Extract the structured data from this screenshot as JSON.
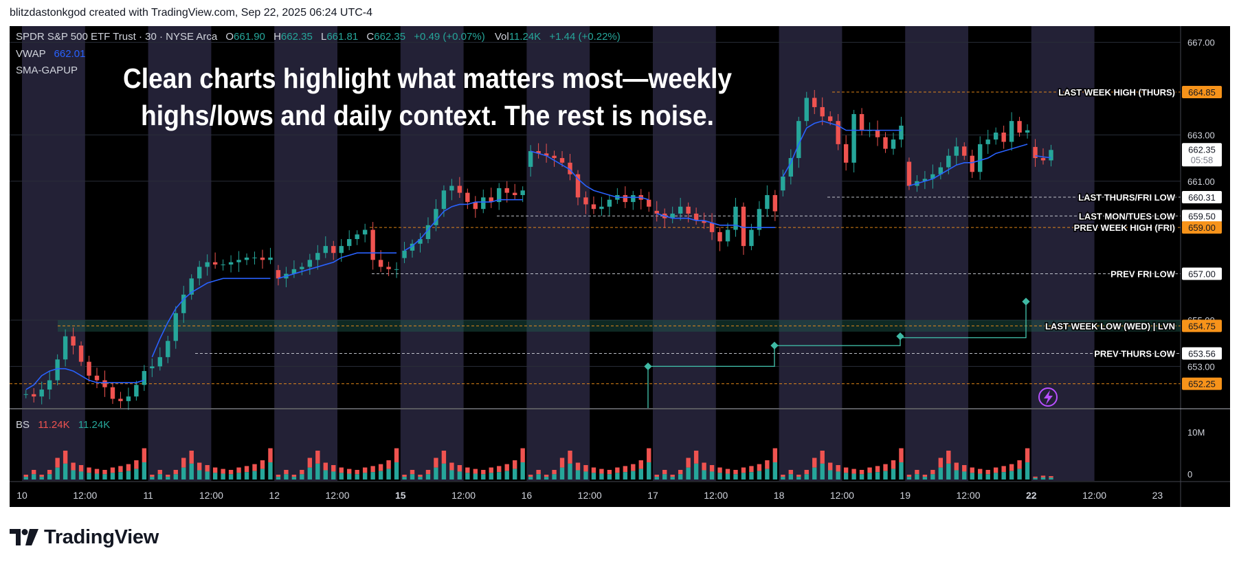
{
  "caption": "blitzdastonkgod created with TradingView.com, Sep 22, 2025 06:24 UTC-4",
  "brand": {
    "name": "TradingView",
    "logo_icon": "tradingview-logo-icon"
  },
  "legend": {
    "symbol": "SPDR S&P 500 ETF Trust · 30 · NYSE Arca",
    "ohlc": [
      {
        "k": "O",
        "v": "661.90"
      },
      {
        "k": "H",
        "v": "662.35"
      },
      {
        "k": "L",
        "v": "661.81"
      },
      {
        "k": "C",
        "v": "662.35"
      }
    ],
    "change": "+0.49 (+0.07%)",
    "vol_key": "Vol",
    "vol_value": "11.24K",
    "vol_change": "+1.44 (+0.22%)",
    "vwap_label": "VWAP",
    "vwap_value": "662.01",
    "indicator": "SMA-GAPUP"
  },
  "annotation": {
    "line1": "Clean charts highlight what matters most—weekly",
    "line2": "highs/lows and daily context. The rest is noise."
  },
  "volume_legend": {
    "label": "BS",
    "v1": "11.24K",
    "v2": "11.24K"
  },
  "colors": {
    "up": "#26a69a",
    "down": "#ef5350",
    "vwap": "#2962ff",
    "orange": "#f7931a",
    "teal_step": "#3fb9a4",
    "session_band": "#232136",
    "legend_text": "#d1d4dc",
    "flash_icon": "#b84fff"
  },
  "chart_data": {
    "type": "candlestick",
    "symbol": "SPY",
    "interval": "30",
    "x_tick_labels": [
      "10",
      "12:00",
      "11",
      "12:00",
      "12",
      "12:00",
      "15",
      "12:00",
      "16",
      "12:00",
      "17",
      "12:00",
      "18",
      "12:00",
      "19",
      "12:00",
      "22",
      "12:00",
      "23"
    ],
    "y_ticks": [
      "667.00",
      "663.00",
      "661.00",
      "655.00",
      "653.00"
    ],
    "ylim": [
      651.2,
      667.7
    ],
    "last_price": "662.35",
    "countdown": "05:58",
    "levels": [
      {
        "label": "LAST WEEK HIGH (THURS)",
        "price": "664.85",
        "style": "orange"
      },
      {
        "label": "LAST THURS/FRI LOW",
        "price": "660.31",
        "style": "white"
      },
      {
        "label": "LAST MON/TUES LOW",
        "price": "659.50",
        "style": "white"
      },
      {
        "label": "PREV WEEK HIGH (FRI)",
        "price": "659.00",
        "style": "orange"
      },
      {
        "label": "PREV FRI LOW",
        "price": "657.00",
        "style": "white"
      },
      {
        "label": "LAST WEEK LOW (WED) | LVN",
        "price": "654.75",
        "style": "orange"
      },
      {
        "label": "PREV THURS LOW",
        "price": "653.56",
        "style": "white"
      },
      {
        "label": "",
        "price": "652.25",
        "style": "orange"
      }
    ],
    "closes_by_day": [
      {
        "day": "Sep 10",
        "close": [
          651.8,
          651.7,
          652.0,
          652.4,
          653.3,
          654.3,
          653.9,
          653.2,
          652.6,
          652.4,
          652.1,
          651.6,
          651.5,
          651.7,
          652.2,
          652.8
        ]
      },
      {
        "day": "Sep 11",
        "close": [
          653.0,
          653.4,
          654.1,
          655.3,
          656.1,
          656.8,
          657.3,
          657.5,
          657.4,
          657.4,
          657.5,
          657.6,
          657.7,
          657.7,
          657.6,
          657.7
        ]
      },
      {
        "day": "Sep 12",
        "close": [
          656.8,
          657.0,
          657.2,
          657.3,
          657.6,
          657.9,
          658.2,
          657.9,
          658.2,
          658.5,
          658.7,
          658.9,
          657.6,
          657.3,
          657.2,
          657.2
        ]
      },
      {
        "day": "Sep 15",
        "close": [
          658.0,
          658.3,
          658.5,
          659.1,
          659.8,
          660.6,
          660.8,
          660.5,
          660.1,
          659.8,
          660.3,
          660.1,
          660.7,
          660.5,
          660.4,
          660.6
        ]
      },
      {
        "day": "Sep 16",
        "close": [
          662.3,
          662.2,
          662.1,
          662.0,
          661.8,
          661.3,
          660.3,
          660.0,
          659.8,
          659.9,
          660.2,
          660.4,
          660.1,
          660.4,
          660.2,
          659.9
        ]
      },
      {
        "day": "Sep 17",
        "close": [
          659.6,
          659.4,
          659.6,
          659.9,
          659.6,
          659.3,
          659.2,
          658.8,
          658.4,
          658.9,
          659.9,
          658.2,
          658.9,
          659.8,
          660.4,
          659.7
        ]
      },
      {
        "day": "Sep 18",
        "close": [
          661.2,
          662.0,
          663.6,
          664.6,
          664.2,
          663.8,
          663.6,
          662.6,
          661.8,
          663.9,
          663.2,
          663.2,
          662.9,
          662.4,
          662.8,
          663.4
        ]
      },
      {
        "day": "Sep 19",
        "close": [
          660.8,
          661.0,
          661.1,
          661.3,
          661.6,
          662.1,
          662.5,
          662.1,
          661.4,
          662.6,
          662.8,
          663.1,
          662.7,
          663.6,
          663.1,
          663.2
        ]
      },
      {
        "day": "Sep 22",
        "close": [
          662.0,
          661.9,
          662.35
        ]
      }
    ],
    "vwap_by_day": [
      {
        "day": "Sep 10",
        "vwap": [
          652.0,
          652.2,
          652.6,
          652.8,
          652.9,
          652.9,
          652.8,
          652.6,
          652.4,
          652.3,
          652.3,
          652.3,
          652.3,
          652.3,
          652.3,
          652.4
        ]
      },
      {
        "day": "Sep 11",
        "vwap": [
          653.4,
          654.2,
          654.9,
          655.5,
          655.9,
          656.2,
          656.4,
          656.6,
          656.7,
          656.8,
          656.8,
          656.8,
          656.8,
          656.8,
          656.8,
          656.8
        ]
      },
      {
        "day": "Sep 12",
        "vwap": [
          656.8,
          656.9,
          657.0,
          657.1,
          657.2,
          657.3,
          657.4,
          657.5,
          657.7,
          657.8,
          657.9,
          657.9,
          657.9,
          657.9,
          657.9,
          657.9
        ]
      },
      {
        "day": "Sep 15",
        "vwap": [
          658.0,
          658.2,
          658.5,
          658.9,
          659.3,
          659.7,
          659.9,
          660.0,
          660.0,
          660.1,
          660.1,
          660.1,
          660.2,
          660.2,
          660.2,
          660.2
        ]
      },
      {
        "day": "Sep 16",
        "vwap": [
          662.3,
          662.2,
          662.1,
          661.9,
          661.7,
          661.5,
          661.1,
          660.8,
          660.6,
          660.5,
          660.4,
          660.3,
          660.3,
          660.3,
          660.3,
          660.2
        ]
      },
      {
        "day": "Sep 17",
        "vwap": [
          659.6,
          659.5,
          659.4,
          659.4,
          659.4,
          659.3,
          659.3,
          659.2,
          659.1,
          659.1,
          659.1,
          659.0,
          659.0,
          659.0,
          659.0,
          659.0
        ]
      },
      {
        "day": "Sep 18",
        "vwap": [
          661.2,
          661.8,
          662.6,
          663.3,
          663.5,
          663.6,
          663.5,
          663.4,
          663.2,
          663.2,
          663.2,
          663.2,
          663.2,
          663.2,
          663.2,
          663.2
        ]
      },
      {
        "day": "Sep 19",
        "vwap": [
          660.8,
          660.9,
          661.0,
          661.1,
          661.3,
          661.5,
          661.7,
          661.8,
          661.8,
          661.9,
          662.0,
          662.2,
          662.3,
          662.4,
          662.5,
          662.6
        ]
      },
      {
        "day": "Sep 22",
        "vwap": [
          662.1,
          662.05,
          662.01
        ]
      }
    ],
    "sma_gapup_markers": [
      655.8,
      654.3,
      654.0,
      653.0,
      652.0
    ],
    "volume": {
      "label": "BS",
      "y_ticks": [
        "10M",
        "0"
      ],
      "by_day_millions": [
        {
          "day": "Sep 10",
          "v": [
            1.0,
            2.0,
            1.0,
            2.0,
            4.5,
            6.0,
            3.5,
            3.0,
            2.5,
            2.2,
            2.0,
            2.5,
            2.8,
            3.2,
            4.0,
            6.5
          ]
        },
        {
          "day": "Sep 11",
          "v": [
            1.0,
            2.0,
            1.0,
            2.0,
            4.5,
            6.0,
            3.5,
            3.0,
            2.5,
            2.2,
            2.0,
            2.5,
            2.8,
            3.2,
            4.0,
            6.5
          ]
        },
        {
          "day": "Sep 12",
          "v": [
            1.0,
            2.0,
            1.0,
            2.0,
            4.5,
            6.0,
            3.5,
            3.0,
            2.5,
            2.2,
            2.0,
            2.5,
            2.8,
            3.2,
            4.0,
            6.5
          ]
        },
        {
          "day": "Sep 15",
          "v": [
            1.0,
            2.0,
            1.0,
            2.0,
            4.5,
            6.0,
            3.5,
            3.0,
            2.5,
            2.2,
            2.0,
            2.5,
            2.8,
            3.2,
            4.0,
            6.5
          ]
        },
        {
          "day": "Sep 16",
          "v": [
            1.0,
            2.0,
            1.0,
            2.0,
            4.5,
            6.0,
            3.5,
            3.0,
            2.5,
            2.2,
            2.0,
            2.5,
            2.8,
            3.2,
            4.0,
            6.5
          ]
        },
        {
          "day": "Sep 17",
          "v": [
            1.0,
            2.0,
            1.0,
            2.0,
            4.5,
            6.0,
            3.5,
            3.0,
            2.5,
            2.2,
            2.0,
            2.5,
            2.8,
            3.2,
            4.0,
            6.5
          ]
        },
        {
          "day": "Sep 18",
          "v": [
            1.0,
            2.0,
            1.0,
            2.0,
            4.5,
            6.0,
            3.5,
            3.0,
            2.5,
            2.2,
            2.0,
            2.5,
            2.8,
            3.2,
            4.0,
            6.5
          ]
        },
        {
          "day": "Sep 19",
          "v": [
            1.0,
            2.0,
            1.0,
            2.0,
            4.5,
            6.0,
            3.5,
            3.0,
            2.5,
            2.2,
            2.0,
            2.5,
            2.8,
            3.2,
            4.0,
            6.5
          ]
        },
        {
          "day": "Sep 22",
          "v": [
            0.6,
            0.8,
            0.7
          ]
        }
      ]
    }
  }
}
